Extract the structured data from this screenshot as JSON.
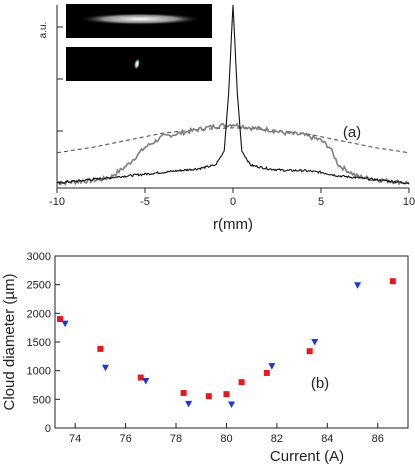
{
  "chart_data": [
    {
      "panel_label": "(a)",
      "type": "line",
      "xlabel": "r(mm)",
      "ylabel": "a.u.",
      "xlim": [
        -10,
        10
      ],
      "x_ticks": [
        -10,
        -5,
        0,
        5,
        10
      ],
      "y_tick_count": 4,
      "insets": [
        {
          "name": "cloud-image-wide",
          "kind": "elongated-bright-cloud"
        },
        {
          "name": "cloud-image-compact",
          "kind": "small-bright-spot"
        }
      ],
      "series": [
        {
          "style": "dashed",
          "color": "#555555",
          "x": [
            -10,
            -8,
            -6,
            -4,
            -2,
            0,
            2,
            4,
            6,
            8,
            10
          ],
          "y": [
            0.17,
            0.2,
            0.24,
            0.28,
            0.3,
            0.31,
            0.3,
            0.28,
            0.24,
            0.2,
            0.17
          ]
        },
        {
          "style": "solid-noisy",
          "color": "#7f7f7f",
          "x": [
            -10,
            -8.5,
            -7.5,
            -7,
            -6,
            -5,
            -4,
            -3,
            -2,
            -1,
            0,
            1,
            2,
            3,
            4,
            5,
            5.5,
            6,
            7,
            8,
            9,
            10
          ],
          "y": [
            0.0,
            0.01,
            0.02,
            0.03,
            0.1,
            0.2,
            0.26,
            0.28,
            0.3,
            0.32,
            0.33,
            0.31,
            0.3,
            0.28,
            0.27,
            0.24,
            0.2,
            0.1,
            0.04,
            0.02,
            0.01,
            0.0
          ]
        },
        {
          "style": "solid",
          "color": "#111111",
          "x": [
            -10,
            -8,
            -6,
            -4,
            -3,
            -2,
            -1,
            -0.5,
            -0.25,
            0,
            0.25,
            0.5,
            1,
            2,
            3,
            4,
            5,
            6,
            8,
            10
          ],
          "y": [
            0.0,
            0.02,
            0.04,
            0.06,
            0.07,
            0.08,
            0.1,
            0.18,
            0.5,
            1.0,
            0.5,
            0.18,
            0.1,
            0.08,
            0.07,
            0.07,
            0.06,
            0.04,
            0.02,
            0.0
          ]
        }
      ]
    },
    {
      "panel_label": "(b)",
      "type": "scatter",
      "xlabel": "Current (A)",
      "ylabel": "Cloud diameter (µm)",
      "xlim": [
        73.2,
        87.2
      ],
      "ylim": [
        0,
        3000
      ],
      "x_ticks": [
        74,
        76,
        78,
        80,
        82,
        84,
        86
      ],
      "y_ticks": [
        0,
        500,
        1000,
        1500,
        2000,
        2500,
        3000
      ],
      "series": [
        {
          "marker": "square",
          "color": "#e8191c",
          "x": [
            73.4,
            75.0,
            76.6,
            78.3,
            79.3,
            80.0,
            80.6,
            81.6,
            83.3,
            86.6
          ],
          "y": [
            1900,
            1380,
            880,
            610,
            555,
            590,
            800,
            960,
            1340,
            2560
          ]
        },
        {
          "marker": "triangle-down",
          "color": "#1538d6",
          "x": [
            73.6,
            75.2,
            76.8,
            78.5,
            80.2,
            81.8,
            83.5,
            85.2
          ],
          "y": [
            1820,
            1050,
            820,
            420,
            410,
            1080,
            1500,
            2490
          ]
        }
      ]
    }
  ]
}
